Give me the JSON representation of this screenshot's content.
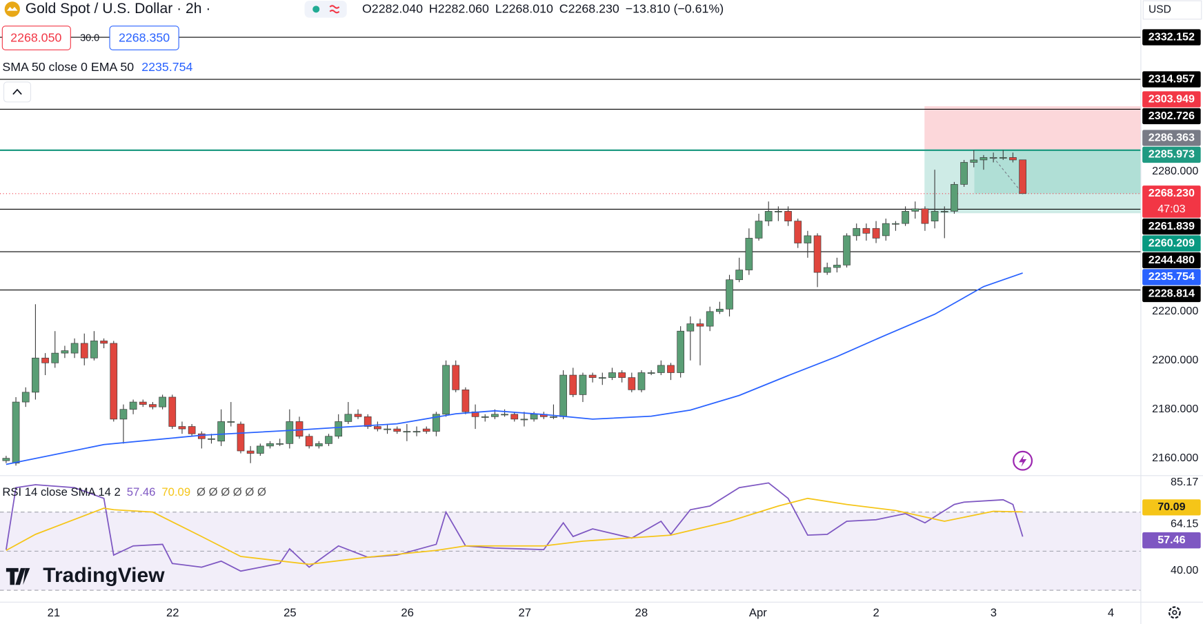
{
  "chart_data": [
    {
      "type": "candlestick",
      "title": "Gold Spot / U.S. Dollar · 2h ·",
      "ohlc_legend": [
        "O2282.040",
        "H2282.060",
        "L2268.010",
        "C2268.230",
        "−13.810 (−0.61%)"
      ],
      "quote": {
        "sell": "2268.050",
        "spread": "30.0",
        "buy": "2268.350"
      },
      "currency": "USD",
      "up_color": "#5a9e75",
      "down_color": "#e0463e",
      "wick_color": "#3a3a3a",
      "ohlc": [
        [
          2159,
          2161,
          2158,
          2160
        ],
        [
          2158,
          2185,
          2157,
          2183
        ],
        [
          2183,
          2189,
          2181,
          2187
        ],
        [
          2187,
          2223,
          2184,
          2201
        ],
        [
          2201,
          2203,
          2194,
          2199
        ],
        [
          2199,
          2212,
          2197,
          2203
        ],
        [
          2203,
          2206,
          2201,
          2204
        ],
        [
          2203,
          2209,
          2201,
          2207
        ],
        [
          2207,
          2211,
          2198,
          2201
        ],
        [
          2201,
          2212,
          2200,
          2208
        ],
        [
          2208,
          2209,
          2205,
          2207
        ],
        [
          2207,
          2208,
          2175,
          2176
        ],
        [
          2176,
          2182,
          2166,
          2180
        ],
        [
          2180,
          2184,
          2178,
          2183
        ],
        [
          2183,
          2184,
          2181,
          2182
        ],
        [
          2182,
          2183,
          2180,
          2181
        ],
        [
          2181,
          2186,
          2180,
          2185
        ],
        [
          2185,
          2186,
          2172,
          2173
        ],
        [
          2173,
          2175,
          2170,
          2172
        ],
        [
          2173,
          2174,
          2169,
          2170
        ],
        [
          2170,
          2171,
          2164,
          2168
        ],
        [
          2168,
          2170,
          2166,
          2168
        ],
        [
          2167,
          2180,
          2165,
          2175
        ],
        [
          2175,
          2183,
          2173,
          2175
        ],
        [
          2174,
          2175,
          2162,
          2163
        ],
        [
          2163,
          2165,
          2158,
          2162
        ],
        [
          2162,
          2166,
          2161,
          2165
        ],
        [
          2165,
          2167,
          2164,
          2166
        ],
        [
          2166,
          2168,
          2165,
          2166
        ],
        [
          2166,
          2180,
          2164,
          2175
        ],
        [
          2175,
          2177,
          2168,
          2169
        ],
        [
          2169,
          2170,
          2164,
          2165
        ],
        [
          2165,
          2167,
          2164,
          2166
        ],
        [
          2166,
          2170,
          2165,
          2169
        ],
        [
          2169,
          2178,
          2168,
          2175
        ],
        [
          2175,
          2183,
          2174,
          2178
        ],
        [
          2178,
          2180,
          2176,
          2177
        ],
        [
          2177,
          2178,
          2172,
          2173
        ],
        [
          2173,
          2175,
          2171,
          2172
        ],
        [
          2172,
          2174,
          2170,
          2172
        ],
        [
          2172,
          2173,
          2170,
          2171
        ],
        [
          2171,
          2174,
          2167,
          2171
        ],
        [
          2171,
          2173,
          2169,
          2171
        ],
        [
          2172,
          2173,
          2170,
          2171
        ],
        [
          2171,
          2179,
          2169,
          2178
        ],
        [
          2178,
          2200,
          2177,
          2198
        ],
        [
          2198,
          2200,
          2187,
          2188
        ],
        [
          2188,
          2189,
          2178,
          2179
        ],
        [
          2179,
          2182,
          2172,
          2177
        ],
        [
          2177,
          2178,
          2175,
          2177
        ],
        [
          2177,
          2180,
          2176,
          2178
        ],
        [
          2178,
          2180,
          2177,
          2178
        ],
        [
          2178,
          2179,
          2175,
          2176
        ],
        [
          2176,
          2179,
          2173,
          2176
        ],
        [
          2176,
          2179,
          2175,
          2178
        ],
        [
          2178,
          2179,
          2176,
          2177
        ],
        [
          2177,
          2182,
          2176,
          2177
        ],
        [
          2177,
          2196,
          2176,
          2194
        ],
        [
          2194,
          2197,
          2185,
          2186
        ],
        [
          2186,
          2195,
          2183,
          2194
        ],
        [
          2194,
          2195,
          2191,
          2193
        ],
        [
          2193,
          2195,
          2190,
          2193
        ],
        [
          2193,
          2197,
          2192,
          2195
        ],
        [
          2195,
          2196,
          2191,
          2193
        ],
        [
          2193,
          2195,
          2187,
          2188
        ],
        [
          2188,
          2196,
          2187,
          2195
        ],
        [
          2195,
          2196,
          2194,
          2195
        ],
        [
          2195,
          2200,
          2194,
          2198
        ],
        [
          2198,
          2199,
          2192,
          2195
        ],
        [
          2195,
          2214,
          2193,
          2212
        ],
        [
          2212,
          2218,
          2200,
          2215
        ],
        [
          2215,
          2217,
          2198,
          2214
        ],
        [
          2214,
          2222,
          2212,
          2220
        ],
        [
          2220,
          2224,
          2219,
          2221
        ],
        [
          2221,
          2235,
          2218,
          2233
        ],
        [
          2233,
          2242,
          2232,
          2237
        ],
        [
          2237,
          2254,
          2235,
          2250
        ],
        [
          2250,
          2260,
          2249,
          2257
        ],
        [
          2257,
          2265,
          2255,
          2261
        ],
        [
          2261,
          2263,
          2257,
          2261
        ],
        [
          2261,
          2263,
          2255,
          2257
        ],
        [
          2257,
          2258,
          2246,
          2248
        ],
        [
          2248,
          2253,
          2242,
          2251
        ],
        [
          2251,
          2252,
          2230,
          2236
        ],
        [
          2236,
          2240,
          2235,
          2238
        ],
        [
          2238,
          2242,
          2236,
          2239
        ],
        [
          2239,
          2252,
          2238,
          2251
        ],
        [
          2251,
          2256,
          2249,
          2254
        ],
        [
          2254,
          2256,
          2249,
          2252
        ],
        [
          2254,
          2257,
          2248,
          2250
        ],
        [
          2251,
          2258,
          2249,
          2256
        ],
        [
          2256,
          2257,
          2253,
          2256
        ],
        [
          2256,
          2263,
          2255,
          2261
        ],
        [
          2261,
          2265,
          2258,
          2262
        ],
        [
          2262,
          2263,
          2253,
          2256
        ],
        [
          2257,
          2278,
          2254,
          2261
        ],
        [
          2261,
          2263,
          2250,
          2261
        ],
        [
          2261,
          2273,
          2260,
          2272
        ],
        [
          2272,
          2282,
          2271,
          2281
        ],
        [
          2281,
          2286,
          2279,
          2282
        ],
        [
          2282,
          2284,
          2278,
          2283
        ],
        [
          2283,
          2285,
          2281,
          2283
        ],
        [
          2283,
          2286,
          2282,
          2283
        ],
        [
          2283,
          2285,
          2281,
          2282
        ],
        [
          2282.04,
          2282.06,
          2268.01,
          2268.23
        ]
      ],
      "ema": {
        "name": "SMA 50 close 0 EMA 50",
        "color": "#2962ff",
        "x": [
          0,
          10,
          20,
          30,
          40,
          46,
          50,
          55,
          60,
          66,
          70,
          75,
          80,
          85,
          90,
          95,
          100,
          104
        ],
        "values": [
          2157.5,
          2165.6,
          2169.4,
          2171.6,
          2174.1,
          2178.2,
          2179.4,
          2177.9,
          2176.0,
          2177.2,
          2179.7,
          2185.7,
          2193.8,
          2201.6,
          2210.4,
          2218.9,
          2230.2,
          2235.754
        ]
      },
      "levels": [
        {
          "value": 2332.152,
          "label": "2332.152",
          "color": "#000000"
        },
        {
          "value": 2314.957,
          "label": "2314.957",
          "color": "#000000"
        },
        {
          "value": 2302.726,
          "label": "2302.726",
          "color": "#000000"
        },
        {
          "value": 2285.973,
          "label": "2285.973",
          "color": "#1f9a82"
        },
        {
          "value": 2261.839,
          "label": "2261.839",
          "color": "#000000"
        },
        {
          "value": 2244.48,
          "label": "2244.480",
          "color": "#000000"
        },
        {
          "value": 2228.814,
          "label": "2228.814",
          "color": "#000000"
        }
      ],
      "position": {
        "stop": {
          "value": 2303.949,
          "label": "2303.949",
          "color": "#f23645"
        },
        "entry": {
          "value": 2286.363,
          "label": "2286.363",
          "color": "#787b86"
        },
        "target": {
          "value": 2260.209,
          "label": "2260.209",
          "color": "#089981"
        }
      },
      "current": {
        "value": 2268.23,
        "label": "2268.230",
        "timer": "47:03",
        "color": "#f23645"
      },
      "xlabels": [
        "21",
        "22",
        "25",
        "26",
        "27",
        "28",
        "Apr",
        "2",
        "3",
        "4"
      ],
      "ylim": [
        2153.04,
        2347.4
      ],
      "yticks": [
        {
          "value": 2160,
          "label": "2160.000"
        },
        {
          "value": 2180,
          "label": "2180.000"
        },
        {
          "value": 2200,
          "label": "2200.000"
        },
        {
          "value": 2220,
          "label": "2220.000"
        },
        {
          "value": 2280,
          "label": "2280.000"
        }
      ]
    },
    {
      "type": "line",
      "title": "RSI 14 close SMA 14 2",
      "null_marks": "Ø Ø Ø Ø Ø Ø",
      "series": [
        {
          "color": "#7e57c2",
          "x": [
            0,
            1,
            3,
            7,
            10,
            11,
            13,
            16,
            17,
            20,
            22,
            24,
            28,
            29,
            31,
            34,
            37,
            40,
            44,
            45,
            47,
            50,
            55,
            57,
            58,
            60,
            64,
            67,
            68,
            70,
            72,
            75,
            78,
            80,
            82,
            84,
            86,
            89,
            92,
            94,
            97,
            98,
            102,
            103,
            104
          ],
          "values": [
            50.8,
            82.5,
            84,
            82.5,
            77,
            48,
            52.7,
            53.5,
            43.7,
            41.8,
            44.9,
            39.8,
            43.7,
            51.2,
            41.8,
            52.7,
            46.9,
            48,
            53.5,
            70,
            52.7,
            51.6,
            50.8,
            64.5,
            57.5,
            61.4,
            56.7,
            65.3,
            58.6,
            71.2,
            73.1,
            82.5,
            84.9,
            77,
            58.2,
            58.6,
            65.3,
            66.1,
            69.2,
            64.5,
            73.9,
            75.1,
            76.3,
            73.9,
            57.46
          ]
        },
        {
          "color": "#f5c518",
          "x": [
            0,
            3,
            10,
            11,
            15,
            20,
            24,
            31,
            37,
            44,
            47,
            55,
            59,
            68,
            74,
            79,
            82,
            86,
            91,
            96,
            101,
            104
          ],
          "values": [
            50.4,
            58.6,
            72,
            71.2,
            70,
            57.5,
            47.3,
            43.3,
            46.9,
            50.4,
            52.7,
            52.7,
            55.1,
            58.2,
            65.3,
            73.1,
            77,
            73.9,
            70.8,
            65.3,
            70.4,
            70.09
          ]
        }
      ],
      "levels": [
        70,
        50,
        30
      ],
      "band_color": "#7e57c2",
      "ylim": [
        24.12,
        88.82
      ],
      "yticks": [
        85.17,
        64.15,
        {
          "value": 40,
          "label": "40.00"
        }
      ]
    }
  ],
  "branding": "TradingView"
}
